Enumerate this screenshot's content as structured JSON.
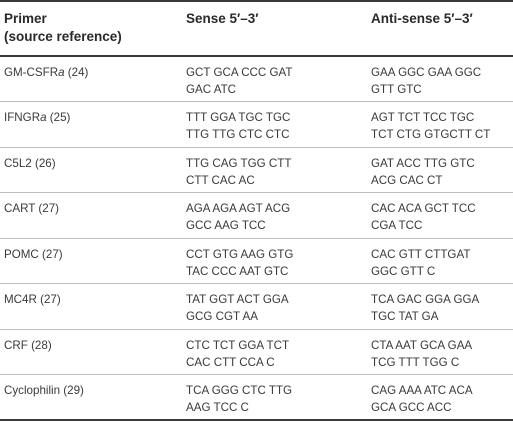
{
  "header": {
    "col1_line1": "Primer",
    "col1_line2": "(source reference)",
    "col2": "Sense 5′–3′",
    "col3": "Anti-sense 5′–3′"
  },
  "rows": [
    {
      "name_main": "GM-CSFR",
      "name_suffix": "a",
      "ref": "(24)",
      "sense_1": "GCT GCA CCC GAT",
      "sense_2": "GAC ATC",
      "anti_1": "GAA GGC GAA GGC",
      "anti_2": "GTT GTC"
    },
    {
      "name_main": "IFNGR",
      "name_suffix": "a",
      "ref": "(25)",
      "sense_1": "TTT GGA TGC TGC",
      "sense_2": "TTG TTG CTC CTC",
      "anti_1": "AGT TCT TCC TGC",
      "anti_2": "TCT CTG GTGCTT CT"
    },
    {
      "name_main": "C5L2",
      "name_suffix": "",
      "ref": "(26)",
      "sense_1": "TTG CAG TGG CTT",
      "sense_2": "CTT CAC AC",
      "anti_1": "GAT ACC TTG GTC",
      "anti_2": "ACG CAC CT"
    },
    {
      "name_main": "CART",
      "name_suffix": "",
      "ref": "(27)",
      "sense_1": "AGA AGA AGT ACG",
      "sense_2": "GCC AAG TCC",
      "anti_1": "CAC ACA GCT TCC",
      "anti_2": "CGA TCC"
    },
    {
      "name_main": "POMC",
      "name_suffix": "",
      "ref": "(27)",
      "sense_1": "CCT GTG AAG GTG",
      "sense_2": "TAC CCC AAT GTC",
      "anti_1": "CAC GTT CTTGAT",
      "anti_2": "GGC GTT C"
    },
    {
      "name_main": "MC4R",
      "name_suffix": "",
      "ref": "(27)",
      "sense_1": "TAT GGT ACT GGA",
      "sense_2": "GCG CGT AA",
      "anti_1": "TCA GAC GGA GGA",
      "anti_2": "TGC TAT GA"
    },
    {
      "name_main": "CRF",
      "name_suffix": "",
      "ref": "(28)",
      "sense_1": "CTC TCT GGA TCT",
      "sense_2": "CAC CTT CCA C",
      "anti_1": "CTA AAT GCA GAA",
      "anti_2": "TCG TTT TGG C"
    },
    {
      "name_main": "Cyclophilin",
      "name_suffix": "",
      "ref": "(29)",
      "sense_1": "TCA GGG CTC TTG",
      "sense_2": "AAG TCC C",
      "anti_1": "CAG AAA ATC ACA",
      "anti_2": "GCA GCC ACC"
    }
  ]
}
